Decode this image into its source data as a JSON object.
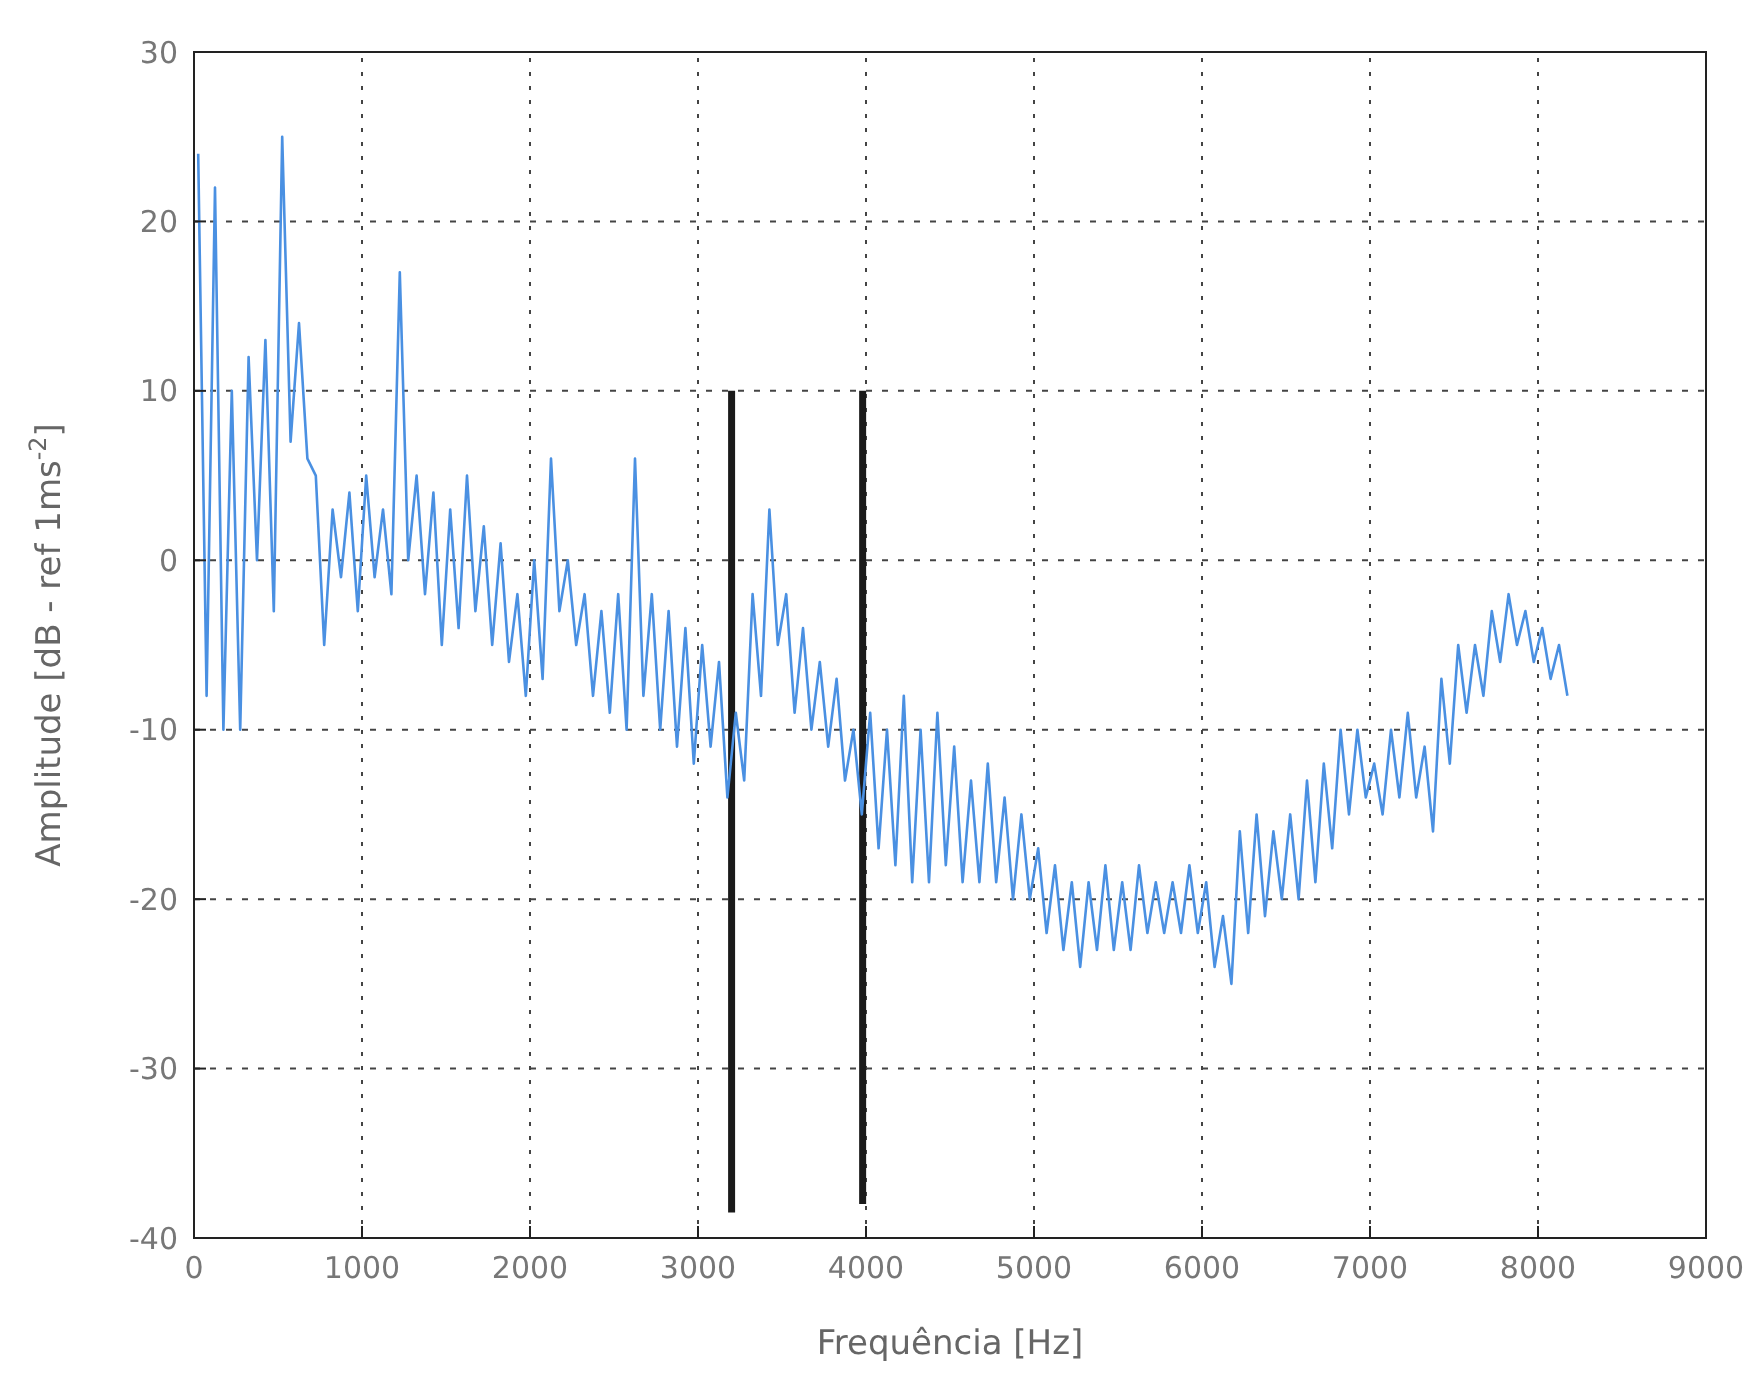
{
  "chart_data": {
    "type": "line",
    "xlabel": "Frequência [Hz]",
    "ylabel": "Amplitude [dB - ref 1ms$^{-2}$]",
    "xlim": [
      0,
      9000
    ],
    "ylim": [
      -40,
      30
    ],
    "xticks": [
      0,
      1000,
      2000,
      3000,
      4000,
      5000,
      6000,
      7000,
      8000,
      9000
    ],
    "yticks": [
      -40,
      -30,
      -20,
      -10,
      0,
      10,
      20,
      30
    ],
    "grid": true,
    "line_style": "solid",
    "series": [
      {
        "color": "#4a90e2",
        "x": [
          25,
          75,
          125,
          175,
          225,
          275,
          325,
          375,
          425,
          475,
          525,
          575,
          625,
          675,
          725,
          775,
          825,
          875,
          925,
          975,
          1025,
          1075,
          1125,
          1175,
          1225,
          1275,
          1325,
          1375,
          1425,
          1475,
          1525,
          1575,
          1625,
          1675,
          1725,
          1775,
          1825,
          1875,
          1925,
          1975,
          2025,
          2075,
          2125,
          2175,
          2225,
          2275,
          2325,
          2375,
          2425,
          2475,
          2525,
          2575,
          2625,
          2675,
          2725,
          2775,
          2825,
          2875,
          2925,
          2975,
          3025,
          3075,
          3125,
          3175,
          3225,
          3275,
          3325,
          3375,
          3425,
          3475,
          3525,
          3575,
          3625,
          3675,
          3725,
          3775,
          3825,
          3875,
          3925,
          3975,
          4025,
          4075,
          4125,
          4175,
          4225,
          4275,
          4325,
          4375,
          4425,
          4475,
          4525,
          4575,
          4625,
          4675,
          4725,
          4775,
          4825,
          4875,
          4925,
          4975,
          5025,
          5075,
          5125,
          5175,
          5225,
          5275,
          5325,
          5375,
          5425,
          5475,
          5525,
          5575,
          5625,
          5675,
          5725,
          5775,
          5825,
          5875,
          5925,
          5975,
          6025,
          6075,
          6125,
          6175,
          6225,
          6275,
          6325,
          6375,
          6425,
          6475,
          6525,
          6575,
          6625,
          6675,
          6725,
          6775,
          6825,
          6875,
          6925,
          6975,
          7025,
          7075,
          7125,
          7175,
          7225,
          7275,
          7325,
          7375,
          7425,
          7475,
          7525,
          7575,
          7625,
          7675,
          7725,
          7775,
          7825,
          7875,
          7925,
          7975,
          8025,
          8075,
          8125,
          8175
        ],
        "values": [
          24,
          -8,
          22,
          -10,
          10,
          -10,
          12,
          0,
          13,
          -3,
          25,
          7,
          14,
          6,
          5,
          -5,
          3,
          -1,
          4,
          -3,
          5,
          -1,
          3,
          -2,
          17,
          0,
          5,
          -2,
          4,
          -5,
          3,
          -4,
          5,
          -3,
          2,
          -5,
          1,
          -6,
          -2,
          -8,
          0,
          -7,
          6,
          -3,
          0,
          -5,
          -2,
          -8,
          -3,
          -9,
          -2,
          -10,
          6,
          -8,
          -2,
          -10,
          -3,
          -11,
          -4,
          -12,
          -5,
          -11,
          -6,
          -14,
          -9,
          -13,
          -2,
          -8,
          3,
          -5,
          -2,
          -9,
          -4,
          -10,
          -6,
          -11,
          -7,
          -13,
          -10,
          -15,
          -9,
          -17,
          -10,
          -18,
          -8,
          -19,
          -10,
          -19,
          -9,
          -18,
          -11,
          -19,
          -13,
          -19,
          -12,
          -19,
          -14,
          -20,
          -15,
          -20,
          -17,
          -22,
          -18,
          -23,
          -19,
          -24,
          -19,
          -23,
          -18,
          -23,
          -19,
          -23,
          -18,
          -22,
          -19,
          -22,
          -19,
          -22,
          -18,
          -22,
          -19,
          -24,
          -21,
          -25,
          -16,
          -22,
          -15,
          -21,
          -16,
          -20,
          -15,
          -20,
          -13,
          -19,
          -12,
          -17,
          -10,
          -15,
          -10,
          -14,
          -12,
          -15,
          -10,
          -14,
          -9,
          -14,
          -11,
          -16,
          -7,
          -12,
          -5,
          -9,
          -5,
          -8,
          -3,
          -6,
          -2,
          -5,
          -3,
          -6,
          -4,
          -7,
          -5,
          -8
        ]
      },
      {
        "color": "#1a1a1a",
        "x": [
          3200,
          3200
        ],
        "values": [
          10,
          -38.5
        ]
      },
      {
        "color": "#1a1a1a",
        "x": [
          3980,
          3980
        ],
        "values": [
          10,
          -38
        ]
      }
    ]
  }
}
